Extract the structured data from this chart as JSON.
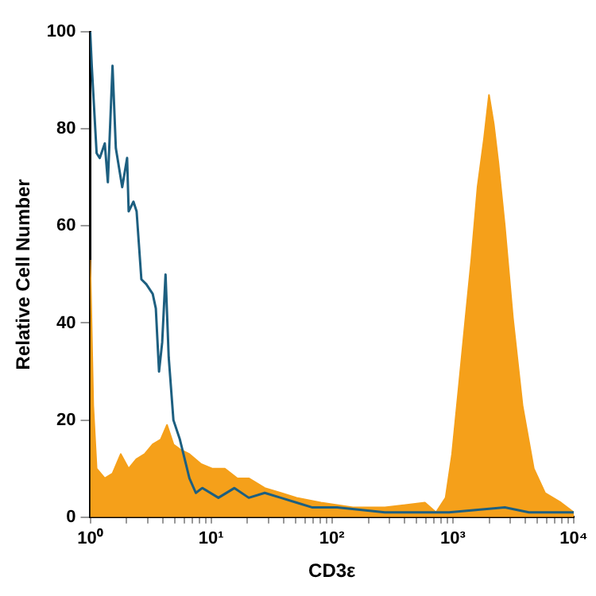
{
  "chart_data": {
    "type": "area",
    "xlabel": "CD3ε",
    "ylabel": "Relative Cell Number",
    "log": "x",
    "grid": false,
    "legend": false,
    "marker": "none",
    "xlim": [
      1,
      10000
    ],
    "xticks": [
      {
        "value": 1,
        "label": "10⁰"
      },
      {
        "value": 2,
        "label": null
      },
      {
        "value": 3,
        "label": null
      },
      {
        "value": 4,
        "label": null
      },
      {
        "value": 5,
        "label": null
      },
      {
        "value": 6,
        "label": null
      },
      {
        "value": 7,
        "label": null
      },
      {
        "value": 8,
        "label": null
      },
      {
        "value": 9,
        "label": null
      },
      {
        "value": 10,
        "label": "10¹"
      },
      {
        "value": 20,
        "label": null
      },
      {
        "value": 30,
        "label": null
      },
      {
        "value": 40,
        "label": null
      },
      {
        "value": 50,
        "label": null
      },
      {
        "value": 60,
        "label": null
      },
      {
        "value": 70,
        "label": null
      },
      {
        "value": 80,
        "label": null
      },
      {
        "value": 90,
        "label": null
      },
      {
        "value": 100,
        "label": "10²"
      },
      {
        "value": 200,
        "label": null
      },
      {
        "value": 300,
        "label": null
      },
      {
        "value": 400,
        "label": null
      },
      {
        "value": 500,
        "label": null
      },
      {
        "value": 600,
        "label": null
      },
      {
        "value": 700,
        "label": null
      },
      {
        "value": 800,
        "label": null
      },
      {
        "value": 900,
        "label": null
      },
      {
        "value": 1000,
        "label": "10³"
      },
      {
        "value": 2000,
        "label": null
      },
      {
        "value": 3000,
        "label": null
      },
      {
        "value": 4000,
        "label": null
      },
      {
        "value": 5000,
        "label": null
      },
      {
        "value": 6000,
        "label": null
      },
      {
        "value": 7000,
        "label": null
      },
      {
        "value": 8000,
        "label": null
      },
      {
        "value": 9000,
        "label": null
      },
      {
        "value": 10000,
        "label": "10⁴"
      }
    ],
    "ylim": [
      0,
      100
    ],
    "yticks": [
      0,
      20,
      40,
      60,
      80,
      100
    ],
    "series": [
      {
        "type": "area",
        "color": "#f5a01a",
        "x": [
          1,
          1.06,
          1.13,
          1.32,
          1.53,
          1.79,
          2.08,
          2.42,
          2.82,
          3.29,
          3.83,
          4.32,
          4.88,
          5.52,
          6.62,
          8.2,
          10.2,
          13,
          16.5,
          20.5,
          27.8,
          37.7,
          51,
          81,
          149,
          274,
          587,
          726,
          871,
          985,
          1110,
          1260,
          1420,
          1600,
          1810,
          1990,
          2180,
          2380,
          2690,
          3140,
          3770,
          4670,
          5780,
          7830,
          10000
        ],
        "values": [
          53,
          23,
          10,
          8,
          9,
          13,
          10,
          12,
          13,
          15,
          16,
          19,
          15,
          14,
          13,
          11,
          10,
          10,
          8,
          8,
          6,
          5,
          4,
          3,
          2,
          2,
          3,
          1,
          4,
          13,
          26,
          40,
          53,
          68,
          78,
          87,
          81,
          73,
          60,
          41,
          23,
          10,
          5,
          3,
          1
        ]
      },
      {
        "type": "line",
        "color": "#1d5f80",
        "x": [
          1,
          1.03,
          1.13,
          1.2,
          1.32,
          1.4,
          1.53,
          1.63,
          1.84,
          2.02,
          2.08,
          2.28,
          2.42,
          2.65,
          2.91,
          3.29,
          3.49,
          3.71,
          3.94,
          4.2,
          4.46,
          4.88,
          5.52,
          6.62,
          7.48,
          8.45,
          11.5,
          15.6,
          20.5,
          27.8,
          37.7,
          51,
          69,
          110,
          274,
          927,
          2690,
          4260,
          10000
        ],
        "values": [
          100,
          93,
          75,
          74,
          77,
          69,
          93,
          76,
          68,
          74,
          63,
          65,
          63,
          49,
          48,
          46,
          43,
          30,
          36,
          50,
          33,
          20,
          16,
          8,
          5,
          6,
          4,
          6,
          4,
          5,
          4,
          3,
          2,
          2,
          1,
          1,
          2,
          1,
          1
        ]
      }
    ]
  }
}
